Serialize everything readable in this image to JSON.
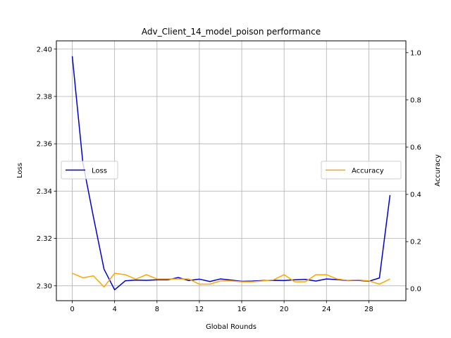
{
  "chart_data": {
    "type": "line",
    "title": "Adv_Client_14_model_poison performance",
    "xlabel": "Global Rounds",
    "ylabel_left": "Loss",
    "ylabel_right": "Accuracy",
    "xlim": [
      -1.5,
      31.5
    ],
    "ylim_left": [
      2.2937,
      2.4035
    ],
    "ylim_right": [
      -0.05,
      1.05
    ],
    "x_ticks": [
      "0",
      "4",
      "8",
      "12",
      "16",
      "20",
      "24",
      "28"
    ],
    "y_ticks_left": [
      "2.30",
      "2.32",
      "2.34",
      "2.36",
      "2.38",
      "2.40"
    ],
    "y_ticks_right": [
      "0.0",
      "0.2",
      "0.4",
      "0.6",
      "0.8",
      "1.0"
    ],
    "grid": true,
    "x": [
      0,
      1,
      2,
      3,
      4,
      5,
      6,
      7,
      8,
      9,
      10,
      11,
      12,
      13,
      14,
      15,
      16,
      17,
      18,
      19,
      20,
      21,
      22,
      23,
      24,
      25,
      26,
      27,
      28,
      29,
      30
    ],
    "series": [
      {
        "name": "Loss",
        "axis": "left",
        "color": "#0000cd",
        "legend_position": "center-left",
        "values": [
          2.397,
          2.352,
          2.329,
          2.307,
          2.2983,
          2.3021,
          2.3024,
          2.3023,
          2.3025,
          2.3025,
          2.3035,
          2.3022,
          2.3028,
          2.3018,
          2.3029,
          2.3024,
          2.3019,
          2.302,
          2.3022,
          2.3023,
          2.3022,
          2.3025,
          2.3027,
          2.302,
          2.3029,
          2.3026,
          2.3022,
          2.3023,
          2.3019,
          2.3033,
          2.3383
        ]
      },
      {
        "name": "Accuracy",
        "axis": "right",
        "color": "#ffa500",
        "legend_position": "center-right",
        "values": [
          0.066,
          0.047,
          0.055,
          0.008,
          0.066,
          0.06,
          0.041,
          0.06,
          0.042,
          0.042,
          0.042,
          0.042,
          0.02,
          0.02,
          0.034,
          0.034,
          0.03,
          0.03,
          0.034,
          0.038,
          0.06,
          0.03,
          0.03,
          0.06,
          0.06,
          0.042,
          0.036,
          0.038,
          0.034,
          0.02,
          0.042
        ]
      }
    ]
  }
}
